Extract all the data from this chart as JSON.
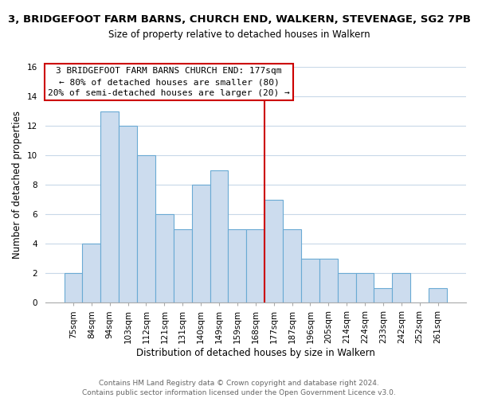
{
  "title": "3, BRIDGEFOOT FARM BARNS, CHURCH END, WALKERN, STEVENAGE, SG2 7PB",
  "subtitle": "Size of property relative to detached houses in Walkern",
  "xlabel": "Distribution of detached houses by size in Walkern",
  "ylabel": "Number of detached properties",
  "bar_labels": [
    "75sqm",
    "84sqm",
    "94sqm",
    "103sqm",
    "112sqm",
    "121sqm",
    "131sqm",
    "140sqm",
    "149sqm",
    "159sqm",
    "168sqm",
    "177sqm",
    "187sqm",
    "196sqm",
    "205sqm",
    "214sqm",
    "224sqm",
    "233sqm",
    "242sqm",
    "252sqm",
    "261sqm"
  ],
  "bar_values": [
    2,
    4,
    13,
    12,
    10,
    6,
    5,
    8,
    9,
    5,
    5,
    7,
    5,
    3,
    3,
    2,
    2,
    1,
    2,
    0,
    1
  ],
  "bar_color": "#ccdcee",
  "bar_edge_color": "#6aaad4",
  "vline_index": 11,
  "vline_color": "#cc0000",
  "annotation_title": "3 BRIDGEFOOT FARM BARNS CHURCH END: 177sqm",
  "annotation_line1": "← 80% of detached houses are smaller (80)",
  "annotation_line2": "20% of semi-detached houses are larger (20) →",
  "annotation_box_color": "#ffffff",
  "annotation_border_color": "#cc0000",
  "ylim": [
    0,
    16
  ],
  "yticks": [
    0,
    2,
    4,
    6,
    8,
    10,
    12,
    14,
    16
  ],
  "footer": "Contains HM Land Registry data © Crown copyright and database right 2024.\nContains public sector information licensed under the Open Government Licence v3.0.",
  "bg_color": "#ffffff",
  "grid_color": "#c8d8e8",
  "title_fontsize": 9.5,
  "subtitle_fontsize": 8.5,
  "xlabel_fontsize": 8.5,
  "ylabel_fontsize": 8.5,
  "tick_fontsize": 7.5,
  "annotation_fontsize": 8,
  "footer_fontsize": 6.5
}
